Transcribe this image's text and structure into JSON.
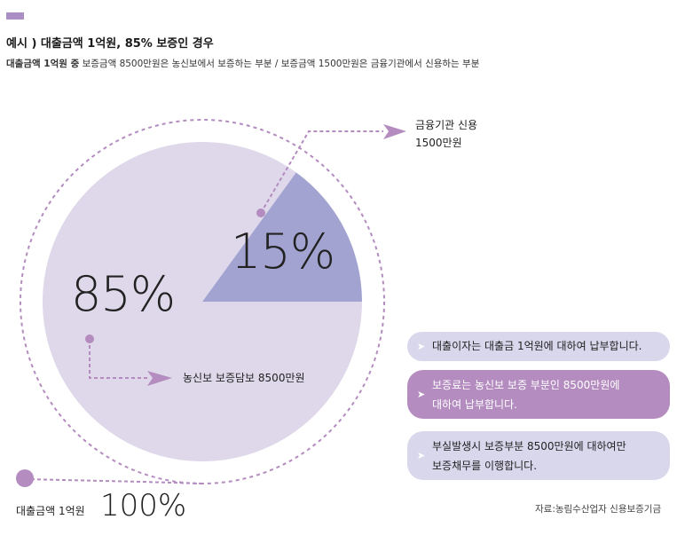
{
  "header": {
    "title": "예시 ) 대출금액 1억원, 85% 보증인 경우",
    "subtitle_bold": "대출금액 1억원 중",
    "subtitle_rest": "보증금액 8500만원은 농신보에서 보증하는 부분 /   보증금액 1500만원은 금융기관에서 신용하는 부분"
  },
  "chart_data": {
    "type": "pie",
    "slices": [
      {
        "label": "농신보 보증담보 8500만원",
        "value": 85,
        "display": "85%",
        "color": "#ded8ea"
      },
      {
        "label": "금융기관 신용 1500만원",
        "value": 15,
        "display": "15%",
        "color": "#a3a3d1"
      }
    ],
    "total_label": "대출금액 1억원",
    "total_display": "100%"
  },
  "labels": {
    "finance_line1": "금융기관 신용",
    "finance_line2": "1500만원",
    "nongshin": "농신보 보증담보 8500만원",
    "total": "대출금액 1억원",
    "total_pct": "100%",
    "pct_85": "85%",
    "pct_15": "15%"
  },
  "notes": [
    {
      "text": "대출이자는 대출금 1억원에 대하여 납부합니다."
    },
    {
      "line1": "보증료는 농신보 보증 부분인 8500만원에",
      "line2": "대하여 납부합니다."
    },
    {
      "line1": "부실발생시 보증부분 8500만원에 대하여만",
      "line2": "보증채무를 이행합니다."
    }
  ],
  "source": "자료:농림수산업자 신용보증기금",
  "colors": {
    "accent": "#a98fc4",
    "pie_main": "#ded8ea",
    "pie_small": "#a3a3d1",
    "dotted": "#b48cc0",
    "note_light": "#d9d7ec",
    "note_dark": "#b48cc0"
  }
}
